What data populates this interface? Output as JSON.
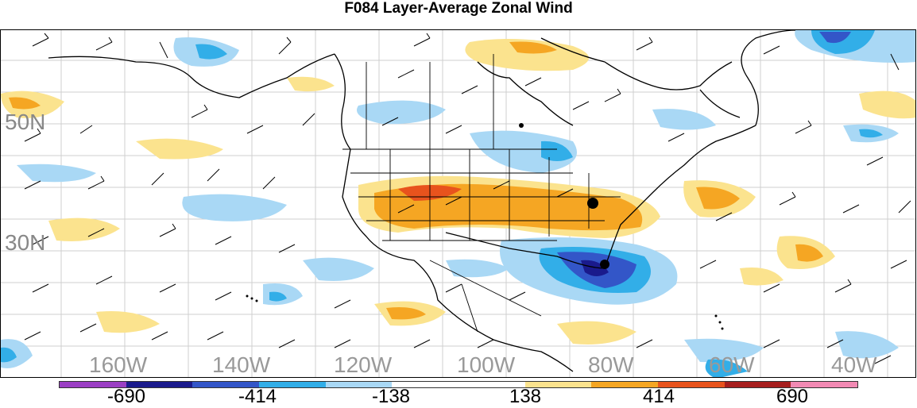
{
  "title": "F084 Layer-Average Zonal Wind",
  "lat_labels": [
    "50N",
    "30N"
  ],
  "lon_labels": [
    "160W",
    "140W",
    "120W",
    "100W",
    "80W",
    "60W",
    "40W"
  ],
  "colorbar": {
    "colors": [
      "#9b3fc4",
      "#1a1a8c",
      "#3356c8",
      "#32aee8",
      "#a9d8f5",
      "#ffffff",
      "#ffffff",
      "#fbe38e",
      "#f5a623",
      "#e8531d",
      "#a61e1e",
      "#f28ab4"
    ],
    "labels": [
      "-690",
      "-414",
      "-138",
      "138",
      "414",
      "690"
    ]
  }
}
